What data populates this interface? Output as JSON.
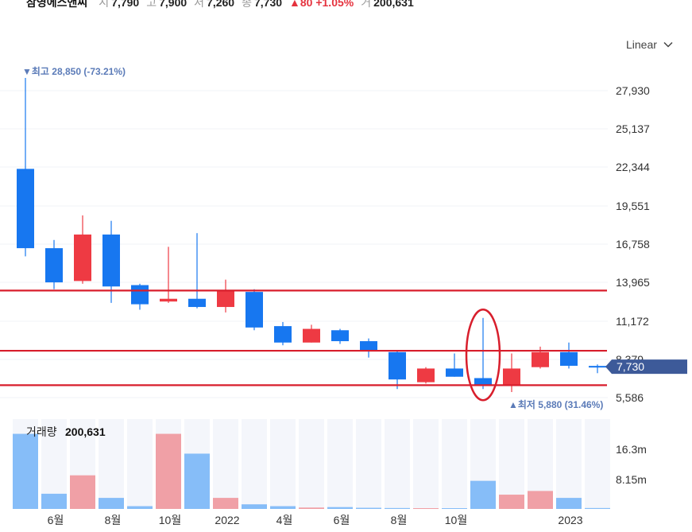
{
  "header": {
    "name": "삼영에스앤씨",
    "open_label": "시",
    "open": "7,790",
    "high_label": "고",
    "high": "7,900",
    "low_label": "저",
    "low": "7,260",
    "close_label": "종",
    "close": "7,730",
    "change": "▲80 +1.05%",
    "volume_label": "거",
    "volume": "200,631"
  },
  "scale_selector": {
    "label": "Linear",
    "icon": "chevron-down-icon"
  },
  "colors": {
    "up": "#ee3a43",
    "down": "#1777f0",
    "vol_up": "#f0a0a6",
    "vol_down": "#86bdf8",
    "vol_bg": "#f4f6fb",
    "annotation": "#d81e2c",
    "price_tag": "#3d5a99"
  },
  "chart_data": {
    "type": "candlestick",
    "y_axis": {
      "ticks": [
        "27,930",
        "25,137",
        "22,344",
        "19,551",
        "16,758",
        "13,965",
        "11,172",
        "8,379",
        "5,586"
      ],
      "range": [
        5100,
        29900
      ]
    },
    "x_axis": {
      "ticks": [
        "6월",
        "8월",
        "10월",
        "2022",
        "4월",
        "6월",
        "8월",
        "10월",
        "2023"
      ]
    },
    "high_label": "▼최고 28,850 (-73.21%)",
    "low_label": "▲최저 5,880 (31.46%)",
    "last_price": "7,730",
    "candles": [
      {
        "o": 22200,
        "h": 28850,
        "l": 15800,
        "c": 16400
      },
      {
        "o": 16400,
        "h": 17000,
        "l": 13400,
        "c": 13900
      },
      {
        "o": 14000,
        "h": 18800,
        "l": 13800,
        "c": 17400
      },
      {
        "o": 17400,
        "h": 18400,
        "l": 12400,
        "c": 13600
      },
      {
        "o": 13700,
        "h": 13800,
        "l": 11900,
        "c": 12300
      },
      {
        "o": 12500,
        "h": 16500,
        "l": 12400,
        "c": 12700
      },
      {
        "o": 12700,
        "h": 17500,
        "l": 12000,
        "c": 12100
      },
      {
        "o": 12100,
        "h": 14100,
        "l": 11700,
        "c": 13300
      },
      {
        "o": 13200,
        "h": 13400,
        "l": 10400,
        "c": 10600
      },
      {
        "o": 10700,
        "h": 11000,
        "l": 9300,
        "c": 9500
      },
      {
        "o": 9500,
        "h": 10800,
        "l": 9500,
        "c": 10500
      },
      {
        "o": 10400,
        "h": 10500,
        "l": 9400,
        "c": 9600
      },
      {
        "o": 9600,
        "h": 9800,
        "l": 8400,
        "c": 8900
      },
      {
        "o": 8800,
        "h": 8900,
        "l": 6100,
        "c": 6800
      },
      {
        "o": 6600,
        "h": 7700,
        "l": 6500,
        "c": 7600
      },
      {
        "o": 7600,
        "h": 8700,
        "l": 7000,
        "c": 7000
      },
      {
        "o": 6900,
        "h": 11300,
        "l": 6100,
        "c": 6400
      },
      {
        "o": 6400,
        "h": 8700,
        "l": 5880,
        "c": 7600
      },
      {
        "o": 7700,
        "h": 9200,
        "l": 7600,
        "c": 8800
      },
      {
        "o": 8800,
        "h": 9500,
        "l": 7600,
        "c": 7800
      },
      {
        "o": 7790,
        "h": 7900,
        "l": 7260,
        "c": 7730
      }
    ],
    "volume": {
      "label": "거래량",
      "value": "200,631",
      "ticks": [
        "16.3m",
        "8.15m"
      ],
      "max": 19500000,
      "values": [
        16300000,
        3300000,
        7300000,
        2400000,
        600000,
        16300000,
        12000000,
        2400000,
        1000000,
        600000,
        300000,
        400000,
        250000,
        200000,
        150000,
        150000,
        6100000,
        3100000,
        3900000,
        2400000,
        200631
      ]
    },
    "annotation_lines": [
      13300,
      8900,
      6380
    ]
  }
}
